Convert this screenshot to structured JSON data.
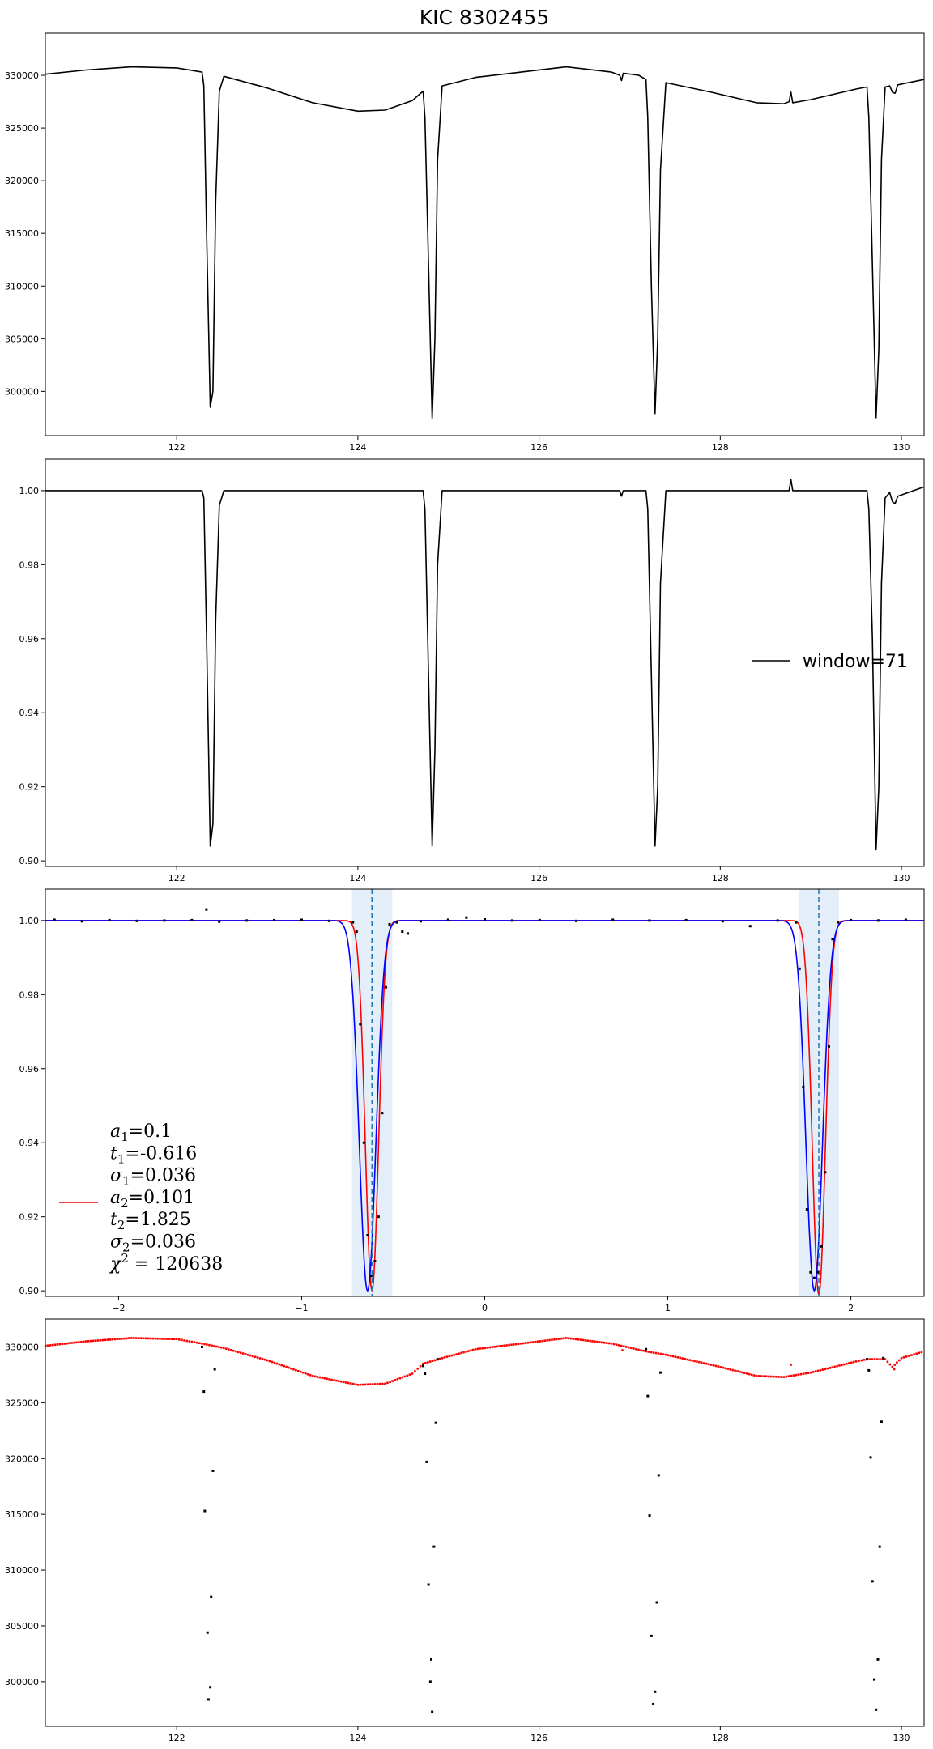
{
  "chart_data": [
    {
      "type": "line",
      "title": "KIC 8302455",
      "xlim": [
        120.55,
        130.25
      ],
      "ylim": [
        295800,
        334000
      ],
      "x_ticks": [
        122,
        124,
        126,
        128,
        130
      ],
      "y_ticks": [
        300000,
        305000,
        310000,
        315000,
        320000,
        325000,
        330000
      ],
      "grid": false,
      "series": [
        {
          "color": "#000000",
          "points": [
            [
              120.55,
              330100
            ],
            [
              121.0,
              330500
            ],
            [
              121.5,
              330800
            ],
            [
              122.0,
              330700
            ],
            [
              122.28,
              330300
            ],
            [
              122.3,
              329000
            ],
            [
              122.33,
              315000
            ],
            [
              122.37,
              298500
            ],
            [
              122.4,
              300000
            ],
            [
              122.43,
              318000
            ],
            [
              122.47,
              328500
            ],
            [
              122.52,
              329900
            ],
            [
              123.0,
              328800
            ],
            [
              123.5,
              327400
            ],
            [
              124.0,
              326600
            ],
            [
              124.3,
              326700
            ],
            [
              124.6,
              327600
            ],
            [
              124.72,
              328500
            ],
            [
              124.74,
              326000
            ],
            [
              124.78,
              312000
            ],
            [
              124.82,
              297400
            ],
            [
              124.85,
              305000
            ],
            [
              124.88,
              322000
            ],
            [
              124.93,
              329000
            ],
            [
              125.3,
              329800
            ],
            [
              125.8,
              330300
            ],
            [
              126.3,
              330800
            ],
            [
              126.8,
              330300
            ],
            [
              126.89,
              330000
            ],
            [
              126.91,
              329500
            ],
            [
              126.93,
              330200
            ],
            [
              127.1,
              330000
            ],
            [
              127.18,
              329600
            ],
            [
              127.2,
              326000
            ],
            [
              127.24,
              310000
            ],
            [
              127.28,
              297900
            ],
            [
              127.31,
              305000
            ],
            [
              127.34,
              321000
            ],
            [
              127.4,
              329300
            ],
            [
              127.9,
              328400
            ],
            [
              128.4,
              327400
            ],
            [
              128.7,
              327300
            ],
            [
              128.76,
              327500
            ],
            [
              128.78,
              328400
            ],
            [
              128.8,
              327400
            ],
            [
              129.0,
              327700
            ],
            [
              129.5,
              328700
            ],
            [
              129.62,
              328900
            ],
            [
              129.64,
              326000
            ],
            [
              129.68,
              312000
            ],
            [
              129.72,
              297500
            ],
            [
              129.75,
              304000
            ],
            [
              129.78,
              322000
            ],
            [
              129.82,
              328900
            ],
            [
              129.87,
              329000
            ],
            [
              129.9,
              328400
            ],
            [
              129.93,
              328300
            ],
            [
              129.96,
              329100
            ],
            [
              130.25,
              329600
            ]
          ]
        }
      ]
    },
    {
      "type": "line",
      "legend": [
        "window=71"
      ],
      "legend_position": "center-right",
      "xlim": [
        120.55,
        130.25
      ],
      "ylim": [
        0.8985,
        1.0085
      ],
      "x_ticks": [
        122,
        124,
        126,
        128,
        130
      ],
      "y_ticks": [
        0.9,
        0.92,
        0.94,
        0.96,
        0.98,
        1.0
      ],
      "grid": false,
      "series": [
        {
          "name": "window=71",
          "color": "#000000",
          "points": [
            [
              120.55,
              1.0
            ],
            [
              122.28,
              1.0
            ],
            [
              122.3,
              0.998
            ],
            [
              122.33,
              0.96
            ],
            [
              122.37,
              0.904
            ],
            [
              122.4,
              0.91
            ],
            [
              122.43,
              0.965
            ],
            [
              122.47,
              0.996
            ],
            [
              122.52,
              1.0
            ],
            [
              124.72,
              1.0
            ],
            [
              124.74,
              0.995
            ],
            [
              124.78,
              0.95
            ],
            [
              124.82,
              0.904
            ],
            [
              124.85,
              0.93
            ],
            [
              124.88,
              0.98
            ],
            [
              124.93,
              1.0
            ],
            [
              126.89,
              1.0
            ],
            [
              126.91,
              0.9985
            ],
            [
              126.93,
              1.0
            ],
            [
              127.18,
              1.0
            ],
            [
              127.2,
              0.995
            ],
            [
              127.24,
              0.95
            ],
            [
              127.28,
              0.904
            ],
            [
              127.31,
              0.92
            ],
            [
              127.34,
              0.975
            ],
            [
              127.4,
              1.0
            ],
            [
              128.76,
              1.0
            ],
            [
              128.78,
              1.003
            ],
            [
              128.8,
              1.0
            ],
            [
              129.62,
              1.0
            ],
            [
              129.64,
              0.995
            ],
            [
              129.68,
              0.96
            ],
            [
              129.72,
              0.903
            ],
            [
              129.75,
              0.92
            ],
            [
              129.78,
              0.975
            ],
            [
              129.82,
              0.998
            ],
            [
              129.87,
              0.9995
            ],
            [
              129.9,
              0.997
            ],
            [
              129.93,
              0.9965
            ],
            [
              129.96,
              0.9985
            ],
            [
              130.25,
              1.001
            ]
          ]
        }
      ]
    },
    {
      "type": "line",
      "xlim": [
        -2.4,
        2.4
      ],
      "ylim": [
        0.8985,
        1.0085
      ],
      "x_ticks": [
        -2,
        -1,
        0,
        1,
        2
      ],
      "y_ticks": [
        0.9,
        0.92,
        0.94,
        0.96,
        0.98,
        1.0
      ],
      "grid": false,
      "shaded_bands": [
        [
          -0.725,
          -0.505
        ],
        [
          1.715,
          1.935
        ]
      ],
      "vertical_lines": [
        -0.616,
        1.825
      ],
      "annotation_lines": [
        {
          "prefix": "a",
          "sub": "1",
          "value": "=0.1"
        },
        {
          "prefix": "t",
          "sub": "1",
          "value": "=-0.616"
        },
        {
          "prefix": "σ",
          "sub": "1",
          "value": "=0.036"
        },
        {
          "prefix": "a",
          "sub": "2",
          "value": "=0.101"
        },
        {
          "prefix": "t",
          "sub": "2",
          "value": "=1.825"
        },
        {
          "prefix": "σ",
          "sub": "2",
          "value": "=0.036"
        },
        {
          "prefix": "χ",
          "sub": "",
          "sup": "2",
          "value": " = 120638"
        }
      ],
      "model_params": {
        "a1": 0.1,
        "t1": -0.616,
        "sigma1": 0.036,
        "a2": 0.101,
        "t2": 1.825,
        "sigma2": 0.036
      },
      "series": [
        {
          "kind": "model",
          "color": "#ff0000",
          "t1": -0.616,
          "t2": 1.825,
          "a1": 0.1,
          "a2": 0.101,
          "sigma1": 0.036,
          "sigma2": 0.036
        },
        {
          "kind": "model",
          "color": "#0000ff",
          "t1": -0.64,
          "t2": 1.8,
          "a1": 0.1,
          "a2": 0.1,
          "sigma1": 0.045,
          "sigma2": 0.045
        }
      ],
      "scatter": [
        [
          -2.35,
          1.0002
        ],
        [
          -2.2,
          0.9998
        ],
        [
          -2.05,
          1.0001
        ],
        [
          -1.9,
          0.9999
        ],
        [
          -1.75,
          1.0
        ],
        [
          -1.6,
          1.0001
        ],
        [
          -1.52,
          1.003
        ],
        [
          -1.45,
          0.9997
        ],
        [
          -1.3,
          1.0
        ],
        [
          -1.15,
          1.0001
        ],
        [
          -1.0,
          1.0002
        ],
        [
          -0.85,
          0.9999
        ],
        [
          -0.72,
          0.9995
        ],
        [
          -0.7,
          0.997
        ],
        [
          -0.68,
          0.972
        ],
        [
          -0.66,
          0.94
        ],
        [
          -0.64,
          0.915
        ],
        [
          -0.62,
          0.904
        ],
        [
          -0.6,
          0.908
        ],
        [
          -0.58,
          0.92
        ],
        [
          -0.56,
          0.948
        ],
        [
          -0.54,
          0.982
        ],
        [
          -0.52,
          0.999
        ],
        [
          -0.48,
          0.9995
        ],
        [
          -0.45,
          0.997
        ],
        [
          -0.42,
          0.9965
        ],
        [
          -0.35,
          0.9998
        ],
        [
          -0.2,
          1.0002
        ],
        [
          -0.1,
          1.0008
        ],
        [
          0.0,
          1.0003
        ],
        [
          0.15,
          1.0
        ],
        [
          0.3,
          1.0001
        ],
        [
          0.5,
          0.9999
        ],
        [
          0.7,
          1.0002
        ],
        [
          0.9,
          1.0
        ],
        [
          1.1,
          1.0001
        ],
        [
          1.3,
          0.9998
        ],
        [
          1.45,
          0.9985
        ],
        [
          1.6,
          1.0
        ],
        [
          1.7,
          0.9995
        ],
        [
          1.72,
          0.987
        ],
        [
          1.74,
          0.955
        ],
        [
          1.76,
          0.922
        ],
        [
          1.78,
          0.905
        ],
        [
          1.8,
          0.9035
        ],
        [
          1.82,
          0.905
        ],
        [
          1.84,
          0.912
        ],
        [
          1.86,
          0.932
        ],
        [
          1.88,
          0.966
        ],
        [
          1.9,
          0.995
        ],
        [
          1.93,
          0.9995
        ],
        [
          2.0,
          1.0001
        ],
        [
          2.15,
          1.0
        ],
        [
          2.3,
          1.0002
        ]
      ]
    },
    {
      "type": "scatter",
      "xlim": [
        120.55,
        130.25
      ],
      "ylim": [
        296000,
        332500
      ],
      "x_ticks": [
        122,
        124,
        126,
        128,
        130
      ],
      "y_ticks": [
        300000,
        305000,
        310000,
        315000,
        320000,
        325000,
        330000
      ],
      "grid": false,
      "series": [
        {
          "color": "#ff0000",
          "kind": "baseline",
          "points": [
            [
              120.55,
              330100
            ],
            [
              121.0,
              330500
            ],
            [
              121.5,
              330800
            ],
            [
              122.0,
              330700
            ],
            [
              122.28,
              330300
            ],
            [
              122.52,
              329900
            ],
            [
              123.0,
              328800
            ],
            [
              123.5,
              327400
            ],
            [
              124.0,
              326600
            ],
            [
              124.3,
              326700
            ],
            [
              124.6,
              327600
            ],
            [
              124.72,
              328500
            ],
            [
              124.93,
              329000
            ],
            [
              125.3,
              329800
            ],
            [
              125.8,
              330300
            ],
            [
              126.3,
              330800
            ],
            [
              126.8,
              330300
            ],
            [
              127.18,
              329600
            ],
            [
              127.4,
              329300
            ],
            [
              127.9,
              328400
            ],
            [
              128.4,
              327400
            ],
            [
              128.7,
              327300
            ],
            [
              129.0,
              327700
            ],
            [
              129.5,
              328700
            ],
            [
              129.62,
              328900
            ],
            [
              129.82,
              328900
            ],
            [
              129.9,
              328200
            ],
            [
              130.0,
              329000
            ],
            [
              130.25,
              329600
            ]
          ],
          "extra": [
            [
              126.92,
              329700
            ],
            [
              128.78,
              328400
            ],
            [
              129.92,
              328000
            ]
          ]
        },
        {
          "color": "#000000",
          "kind": "dips",
          "points": [
            [
              122.28,
              330000
            ],
            [
              122.3,
              326000
            ],
            [
              122.31,
              315300
            ],
            [
              122.34,
              304400
            ],
            [
              122.35,
              298400
            ],
            [
              122.37,
              299500
            ],
            [
              122.38,
              307600
            ],
            [
              122.4,
              318900
            ],
            [
              122.42,
              328000
            ],
            [
              124.72,
              328300
            ],
            [
              124.74,
              327600
            ],
            [
              124.76,
              319700
            ],
            [
              124.78,
              308700
            ],
            [
              124.8,
              300000
            ],
            [
              124.81,
              302000
            ],
            [
              124.82,
              297300
            ],
            [
              124.84,
              312100
            ],
            [
              124.86,
              323200
            ],
            [
              124.88,
              328900
            ],
            [
              127.18,
              329800
            ],
            [
              127.2,
              325600
            ],
            [
              127.22,
              314900
            ],
            [
              127.24,
              304100
            ],
            [
              127.26,
              298000
            ],
            [
              127.28,
              299100
            ],
            [
              127.3,
              307100
            ],
            [
              127.32,
              318500
            ],
            [
              127.34,
              327700
            ],
            [
              129.62,
              328900
            ],
            [
              129.64,
              327900
            ],
            [
              129.66,
              320100
            ],
            [
              129.68,
              309000
            ],
            [
              129.7,
              300200
            ],
            [
              129.72,
              297500
            ],
            [
              129.74,
              302000
            ],
            [
              129.76,
              312100
            ],
            [
              129.78,
              323300
            ],
            [
              129.8,
              329000
            ]
          ]
        }
      ]
    }
  ]
}
